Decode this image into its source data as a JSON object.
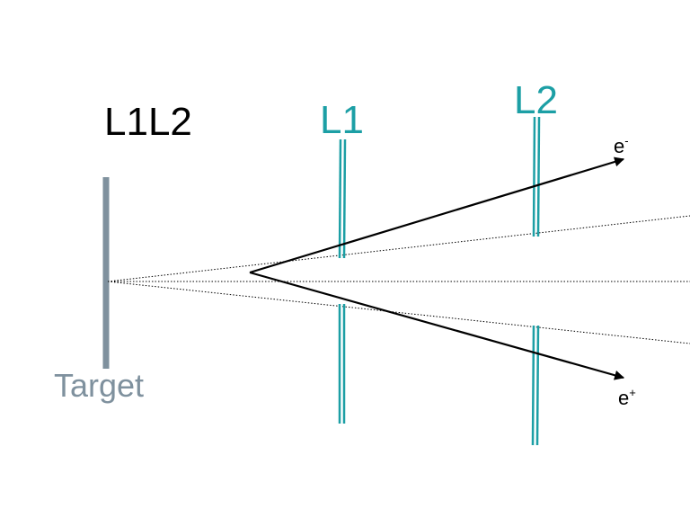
{
  "diagram": {
    "title": "L1L2",
    "target": {
      "label": "Target"
    },
    "layers": [
      {
        "label": "L1"
      },
      {
        "label": "L2"
      }
    ],
    "particles": [
      {
        "symbol": "e",
        "charge": "-"
      },
      {
        "symbol": "e",
        "charge": "+"
      }
    ],
    "colors": {
      "target": "#7f919e",
      "layer": "#1c9fa5",
      "track": "#000000",
      "guide": "#000000",
      "text": "#000000",
      "background": "#ffffff"
    }
  }
}
